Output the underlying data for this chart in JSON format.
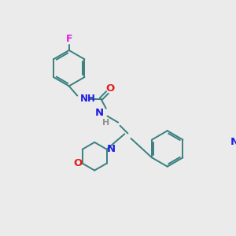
{
  "background_color": "#ebebeb",
  "bond_color": "#3a8080",
  "atom_colors": {
    "N": "#2020e0",
    "O": "#e02020",
    "F": "#e020e0",
    "H_gray": "#909090"
  },
  "lw": 1.4,
  "fig_width": 3.0,
  "fig_height": 3.0,
  "dpi": 100
}
